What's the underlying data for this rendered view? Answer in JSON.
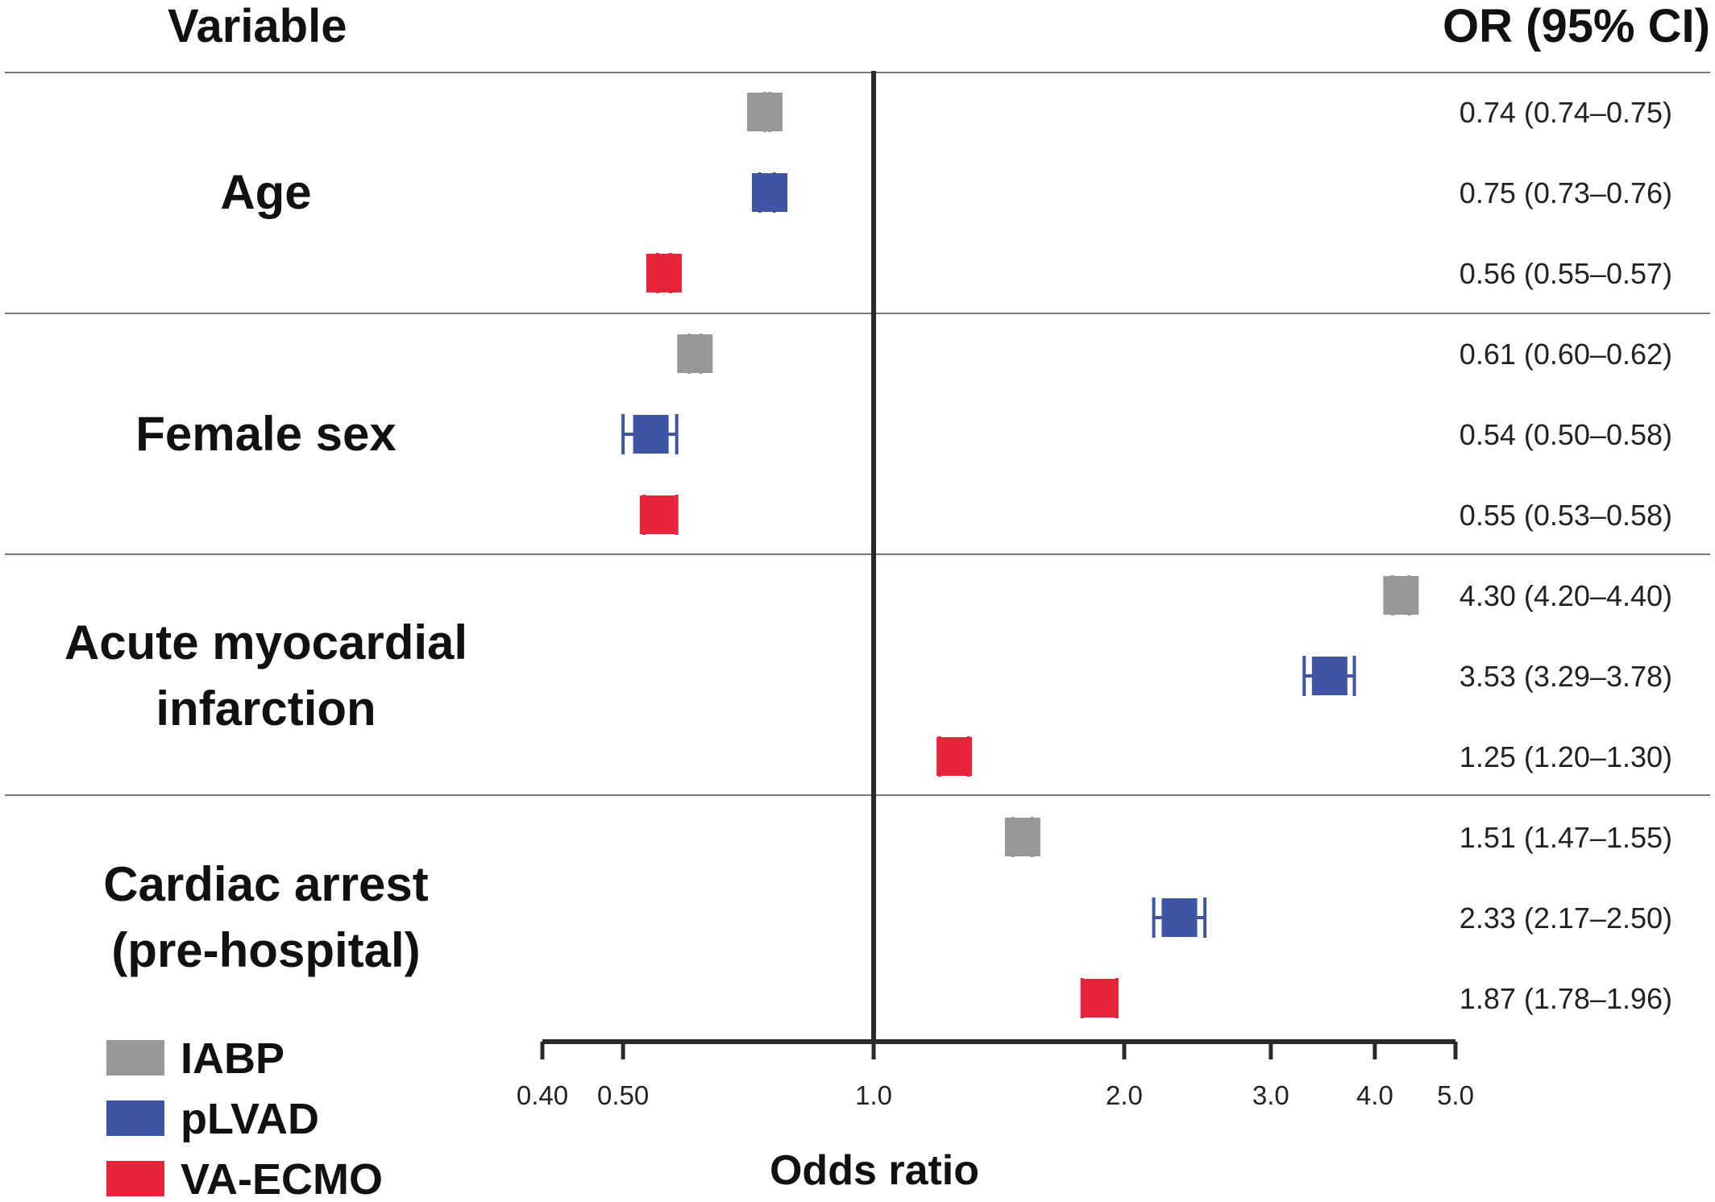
{
  "chart_data": {
    "type": "forest",
    "column_headers": {
      "variable": "Variable",
      "or": "OR (95% CI)"
    },
    "xlabel": "Odds ratio",
    "x_scale": "log",
    "xlim": [
      0.4,
      5.0
    ],
    "reference_line": 1.0,
    "x_ticks": [
      {
        "value": 0.4,
        "label": "0.40"
      },
      {
        "value": 0.5,
        "label": "0.50"
      },
      {
        "value": 1.0,
        "label": "1.0"
      },
      {
        "value": 2.0,
        "label": "2.0"
      },
      {
        "value": 3.0,
        "label": "3.0"
      },
      {
        "value": 4.0,
        "label": "4.0"
      },
      {
        "value": 5.0,
        "label": "5.0"
      }
    ],
    "series": [
      {
        "name": "IABP",
        "color": "#999797"
      },
      {
        "name": "pLVAD",
        "color": "#3d55a2"
      },
      {
        "name": "VA-ECMO",
        "color": "#e8243b"
      }
    ],
    "groups": [
      {
        "label_lines": [
          "Age"
        ],
        "rows": [
          {
            "series": "IABP",
            "or": 0.74,
            "lo": 0.74,
            "hi": 0.75,
            "text": "0.74 (0.74–0.75)"
          },
          {
            "series": "pLVAD",
            "or": 0.75,
            "lo": 0.73,
            "hi": 0.76,
            "text": "0.75 (0.73–0.76)"
          },
          {
            "series": "VA-ECMO",
            "or": 0.56,
            "lo": 0.55,
            "hi": 0.57,
            "text": "0.56 (0.55–0.57)"
          }
        ]
      },
      {
        "label_lines": [
          "Female sex"
        ],
        "rows": [
          {
            "series": "IABP",
            "or": 0.61,
            "lo": 0.6,
            "hi": 0.62,
            "text": "0.61 (0.60–0.62)"
          },
          {
            "series": "pLVAD",
            "or": 0.54,
            "lo": 0.5,
            "hi": 0.58,
            "text": "0.54 (0.50–0.58)"
          },
          {
            "series": "VA-ECMO",
            "or": 0.55,
            "lo": 0.53,
            "hi": 0.58,
            "text": "0.55 (0.53–0.58)"
          }
        ]
      },
      {
        "label_lines": [
          "Acute myocardial",
          "infarction"
        ],
        "rows": [
          {
            "series": "IABP",
            "or": 4.3,
            "lo": 4.2,
            "hi": 4.4,
            "text": "4.30 (4.20–4.40)"
          },
          {
            "series": "pLVAD",
            "or": 3.53,
            "lo": 3.29,
            "hi": 3.78,
            "text": "3.53 (3.29–3.78)"
          },
          {
            "series": "VA-ECMO",
            "or": 1.25,
            "lo": 1.2,
            "hi": 1.3,
            "text": "1.25 (1.20–1.30)"
          }
        ]
      },
      {
        "label_lines": [
          "Cardiac arrest",
          "(pre-hospital)"
        ],
        "rows": [
          {
            "series": "IABP",
            "or": 1.51,
            "lo": 1.47,
            "hi": 1.55,
            "text": "1.51 (1.47–1.55)"
          },
          {
            "series": "pLVAD",
            "or": 2.33,
            "lo": 2.17,
            "hi": 2.5,
            "text": "2.33 (2.17–2.50)"
          },
          {
            "series": "VA-ECMO",
            "or": 1.87,
            "lo": 1.78,
            "hi": 1.96,
            "text": "1.87 (1.78–1.96)"
          }
        ]
      }
    ],
    "legend": {
      "position": "bottom-left"
    }
  }
}
